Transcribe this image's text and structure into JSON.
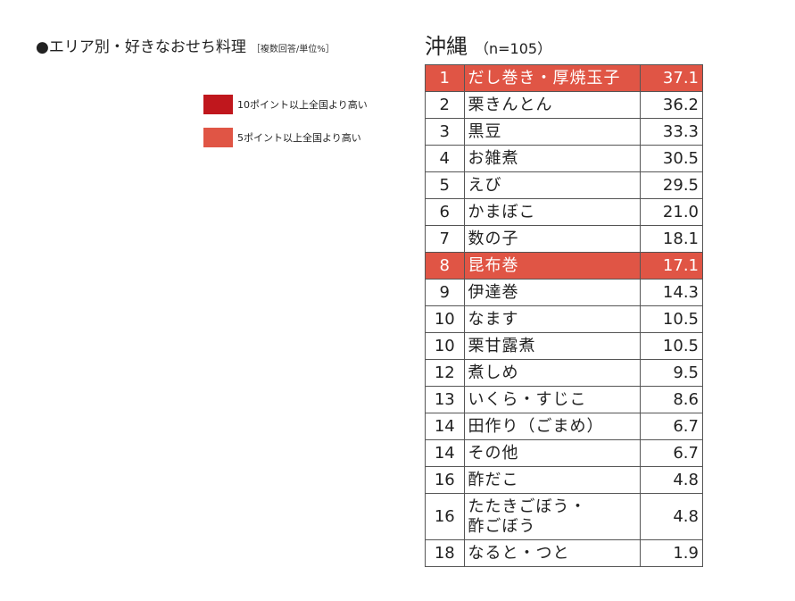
{
  "heading": {
    "title": "●エリア別・好きなおせち料理",
    "subtitle": "［複数回答/単位%］"
  },
  "legend": [
    {
      "label": "10ポイント以上全国より高い",
      "color": "#c0171d"
    },
    {
      "label": "5ポイント以上全国より高い",
      "color": "#e05545"
    }
  ],
  "region": {
    "name": "沖縄",
    "n": "（n=105）"
  },
  "chart_data": {
    "type": "table",
    "title": "沖縄",
    "unit": "%",
    "rows": [
      {
        "rank": "1",
        "dish": "だし巻き・厚焼玉子",
        "value": "37.1",
        "highlight": "5pt"
      },
      {
        "rank": "2",
        "dish": "栗きんとん",
        "value": "36.2",
        "highlight": ""
      },
      {
        "rank": "3",
        "dish": "黒豆",
        "value": "33.3",
        "highlight": ""
      },
      {
        "rank": "4",
        "dish": "お雑煮",
        "value": "30.5",
        "highlight": ""
      },
      {
        "rank": "5",
        "dish": "えび",
        "value": "29.5",
        "highlight": ""
      },
      {
        "rank": "6",
        "dish": "かまぼこ",
        "value": "21.0",
        "highlight": ""
      },
      {
        "rank": "7",
        "dish": "数の子",
        "value": "18.1",
        "highlight": ""
      },
      {
        "rank": "8",
        "dish": "昆布巻",
        "value": "17.1",
        "highlight": "5pt"
      },
      {
        "rank": "9",
        "dish": "伊達巻",
        "value": "14.3",
        "highlight": ""
      },
      {
        "rank": "10",
        "dish": "なます",
        "value": "10.5",
        "highlight": ""
      },
      {
        "rank": "10",
        "dish": "栗甘露煮",
        "value": "10.5",
        "highlight": ""
      },
      {
        "rank": "12",
        "dish": "煮しめ",
        "value": "9.5",
        "highlight": ""
      },
      {
        "rank": "13",
        "dish": "いくら・すじこ",
        "value": "8.6",
        "highlight": ""
      },
      {
        "rank": "14",
        "dish": "田作り（ごまめ）",
        "value": "6.7",
        "highlight": ""
      },
      {
        "rank": "14",
        "dish": "その他",
        "value": "6.7",
        "highlight": ""
      },
      {
        "rank": "16",
        "dish": "酢だこ",
        "value": "4.8",
        "highlight": ""
      },
      {
        "rank": "16",
        "dish": "たたきごぼう・\n酢ごぼう",
        "value": "4.8",
        "highlight": ""
      },
      {
        "rank": "18",
        "dish": "なると・つと",
        "value": "1.9",
        "highlight": ""
      }
    ]
  }
}
